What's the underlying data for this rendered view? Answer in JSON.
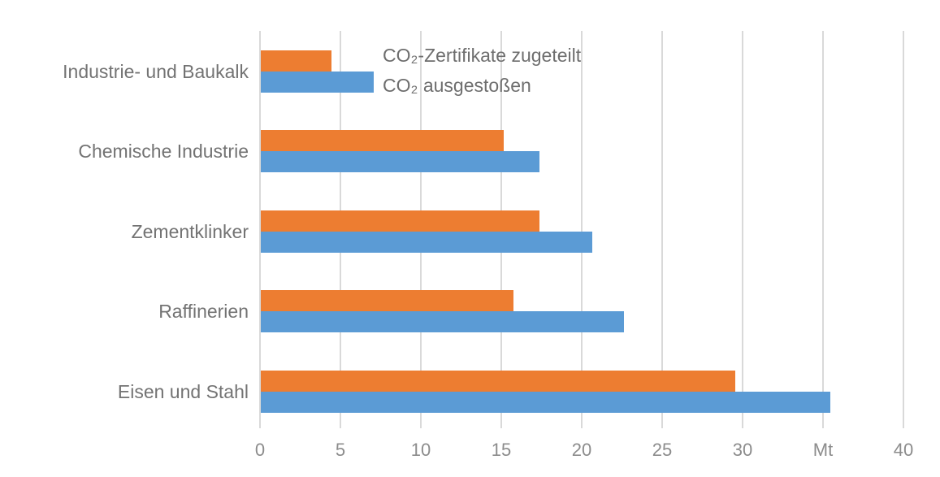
{
  "chart_data": {
    "type": "bar",
    "orientation": "horizontal",
    "title": "",
    "unit_label": "Mt",
    "categories": [
      "Industrie- und Baukalk",
      "Chemische Industrie",
      "Zementklinker",
      "Raffinerien",
      "Eisen und Stahl"
    ],
    "series": [
      {
        "name": "CO₂-Zertifikate zugeteilt",
        "color": "#ED7D31",
        "values": [
          4.4,
          15.1,
          17.3,
          15.7,
          29.5
        ]
      },
      {
        "name": "CO₂ ausgestoßen",
        "color": "#5B9BD5",
        "values": [
          7.0,
          17.3,
          20.6,
          22.6,
          35.4
        ]
      }
    ],
    "x_axis": {
      "range": [
        0,
        40
      ],
      "ticks": [
        {
          "label": "0",
          "value": 0
        },
        {
          "label": "5",
          "value": 5
        },
        {
          "label": "10",
          "value": 10
        },
        {
          "label": "15",
          "value": 15
        },
        {
          "label": "20",
          "value": 20
        },
        {
          "label": "25",
          "value": 25
        },
        {
          "label": "30",
          "value": 30
        },
        {
          "label": "Mt",
          "value": 35
        },
        {
          "label": "40",
          "value": 40
        }
      ]
    },
    "legend_position": "inside-top, right of first category bars",
    "grid": "vertical-only",
    "colors": {
      "gridline": "#D9D9D9",
      "category_text": "#737373",
      "tick_text": "#8C8C8C",
      "legend_text": "#6E6E6E"
    }
  }
}
